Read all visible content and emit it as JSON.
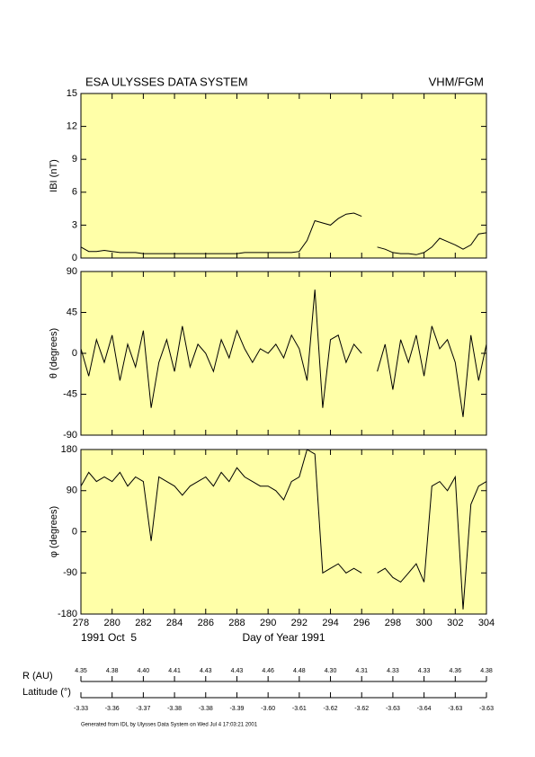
{
  "header": {
    "title": "ESA ULYSSES DATA SYSTEM",
    "instrument": "VHM/FGM"
  },
  "chart_data": [
    {
      "type": "line",
      "ylabel": "IBI (nT)",
      "color": "#000000",
      "background": "#ffffa8",
      "xlim": [
        278,
        304
      ],
      "xticks": [
        278,
        280,
        282,
        284,
        286,
        288,
        290,
        292,
        294,
        296,
        298,
        300,
        302,
        304
      ],
      "ylim": [
        0,
        15
      ],
      "yticks": [
        0,
        3,
        6,
        9,
        12,
        15
      ],
      "x": [
        278,
        278.5,
        279,
        279.5,
        280,
        280.5,
        281,
        281.5,
        282,
        282.5,
        283,
        283.5,
        284,
        284.5,
        285,
        285.5,
        286,
        286.5,
        287,
        287.5,
        288,
        288.5,
        289,
        289.5,
        290,
        290.5,
        291,
        291.5,
        292,
        292.5,
        293,
        293.5,
        294,
        294.5,
        295,
        295.5,
        296,
        296.5,
        297,
        297.5,
        298,
        298.5,
        299,
        299.5,
        300,
        300.5,
        301,
        301.5,
        302,
        302.5,
        303,
        303.5,
        304
      ],
      "values": [
        1.0,
        0.6,
        0.6,
        0.7,
        0.6,
        0.5,
        0.5,
        0.5,
        0.4,
        0.4,
        0.4,
        0.4,
        0.4,
        0.4,
        0.4,
        0.4,
        0.4,
        0.4,
        0.4,
        0.4,
        0.4,
        0.5,
        0.5,
        0.5,
        0.5,
        0.5,
        0.5,
        0.5,
        0.6,
        1.6,
        3.4,
        3.2,
        3.0,
        3.6,
        4.0,
        4.1,
        3.8,
        null,
        1.0,
        0.8,
        0.5,
        0.4,
        0.4,
        0.3,
        0.5,
        1.0,
        1.8,
        1.5,
        1.2,
        0.8,
        1.2,
        2.2,
        2.3
      ]
    },
    {
      "type": "line",
      "ylabel": "θ (degrees)",
      "color": "#000000",
      "background": "#ffffa8",
      "xlim": [
        278,
        304
      ],
      "xticks": [
        278,
        280,
        282,
        284,
        286,
        288,
        290,
        292,
        294,
        296,
        298,
        300,
        302,
        304
      ],
      "ylim": [
        -90,
        90
      ],
      "yticks": [
        -90,
        -45,
        0,
        45,
        90
      ],
      "x": [
        278,
        278.5,
        279,
        279.5,
        280,
        280.5,
        281,
        281.5,
        282,
        282.5,
        283,
        283.5,
        284,
        284.5,
        285,
        285.5,
        286,
        286.5,
        287,
        287.5,
        288,
        288.5,
        289,
        289.5,
        290,
        290.5,
        291,
        291.5,
        292,
        292.5,
        293,
        293.5,
        294,
        294.5,
        295,
        295.5,
        296,
        296.5,
        297,
        297.5,
        298,
        298.5,
        299,
        299.5,
        300,
        300.5,
        301,
        301.5,
        302,
        302.5,
        303,
        303.5,
        304
      ],
      "values": [
        5,
        -25,
        15,
        -10,
        20,
        -30,
        10,
        -15,
        25,
        -60,
        -10,
        15,
        -20,
        30,
        -15,
        10,
        0,
        -20,
        15,
        -5,
        25,
        5,
        -10,
        5,
        0,
        10,
        -5,
        20,
        5,
        -30,
        70,
        -60,
        15,
        20,
        -10,
        10,
        0,
        null,
        -20,
        10,
        -40,
        15,
        -10,
        20,
        -25,
        30,
        5,
        15,
        -10,
        -70,
        20,
        -30,
        10
      ]
    },
    {
      "type": "line",
      "ylabel": "φ (degrees)",
      "color": "#000000",
      "background": "#ffffa8",
      "xlim": [
        278,
        304
      ],
      "xticks": [
        278,
        280,
        282,
        284,
        286,
        288,
        290,
        292,
        294,
        296,
        298,
        300,
        302,
        304
      ],
      "ylim": [
        -180,
        180
      ],
      "yticks": [
        -180,
        -90,
        0,
        90,
        180
      ],
      "xlabel": "Day of Year 1991",
      "start_date": "1991 Oct  5",
      "x": [
        278,
        278.5,
        279,
        279.5,
        280,
        280.5,
        281,
        281.5,
        282,
        282.5,
        283,
        283.5,
        284,
        284.5,
        285,
        285.5,
        286,
        286.5,
        287,
        287.5,
        288,
        288.5,
        289,
        289.5,
        290,
        290.5,
        291,
        291.5,
        292,
        292.5,
        293,
        293.5,
        294,
        294.5,
        295,
        295.5,
        296,
        296.5,
        297,
        297.5,
        298,
        298.5,
        299,
        299.5,
        300,
        300.5,
        301,
        301.5,
        302,
        302.5,
        303,
        303.5,
        304
      ],
      "values": [
        100,
        130,
        110,
        120,
        110,
        130,
        100,
        120,
        110,
        -20,
        120,
        110,
        100,
        80,
        100,
        110,
        120,
        100,
        130,
        110,
        140,
        120,
        110,
        100,
        100,
        90,
        70,
        110,
        120,
        180,
        170,
        -90,
        -80,
        -70,
        -90,
        -80,
        -90,
        null,
        -90,
        -80,
        -100,
        -110,
        -90,
        -70,
        -110,
        100,
        110,
        90,
        120,
        -170,
        60,
        100,
        110
      ]
    }
  ],
  "ephemeris": {
    "rows": [
      {
        "label": "R (AU)",
        "values": [
          "4.35",
          "4.38",
          "4.40",
          "4.41",
          "4.43",
          "4.43",
          "4.46",
          "4.48",
          "4.30",
          "4.31",
          "4.33",
          "4.33",
          "4.36",
          "4.38"
        ]
      },
      {
        "label": "Latitude (°)",
        "values": [
          "-3.33",
          "-3.36",
          "-3.37",
          "-3.38",
          "-3.38",
          "-3.39",
          "-3.60",
          "-3.61",
          "-3.62",
          "-3.62",
          "-3.63",
          "-3.64",
          "-3.63",
          "-3.63"
        ]
      }
    ]
  },
  "footer": "Generated from IDL by Ulysses Data System on Wed Jul  4 17:03:21 2001"
}
